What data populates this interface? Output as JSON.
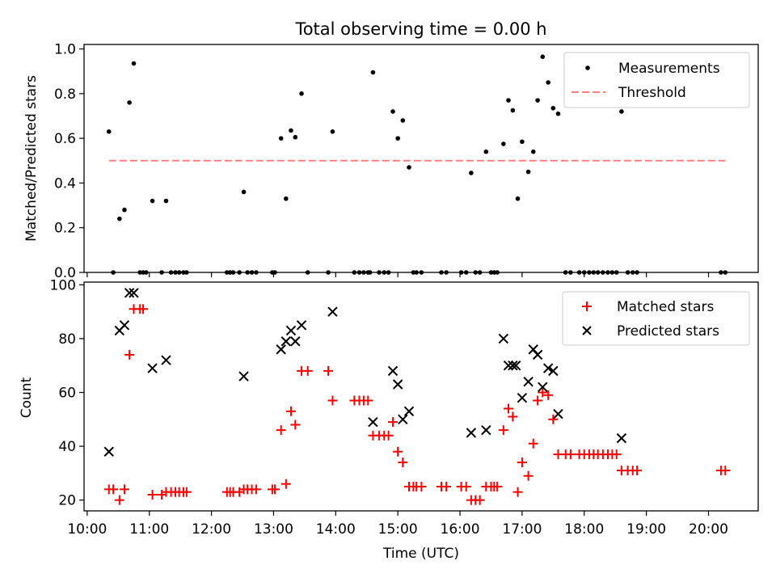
{
  "title": "Total observing time = 0.00 h",
  "chart_data": [
    {
      "type": "scatter",
      "ylabel": "Matched/Predicted stars",
      "xlim": [
        9.95,
        20.8
      ],
      "ylim": [
        0,
        1.02
      ],
      "yticks": [
        0.0,
        0.2,
        0.4,
        0.6,
        0.8,
        1.0
      ],
      "ytick_labels": [
        "0.0",
        "0.2",
        "0.4",
        "0.6",
        "0.8",
        "1.0"
      ],
      "legend_position": "upper right",
      "series": [
        {
          "name": "Measurements",
          "marker": "dot",
          "color": "#000000",
          "points": [
            [
              10.35,
              0.63
            ],
            [
              10.42,
              0.0
            ],
            [
              10.52,
              0.24
            ],
            [
              10.6,
              0.28
            ],
            [
              10.68,
              0.76
            ],
            [
              10.75,
              0.935
            ],
            [
              10.85,
              0.0
            ],
            [
              10.9,
              0.0
            ],
            [
              10.95,
              0.0
            ],
            [
              11.05,
              0.32
            ],
            [
              11.2,
              0.0
            ],
            [
              11.27,
              0.32
            ],
            [
              11.35,
              0.0
            ],
            [
              11.42,
              0.0
            ],
            [
              11.48,
              0.0
            ],
            [
              11.55,
              0.0
            ],
            [
              11.6,
              0.0
            ],
            [
              12.25,
              0.0
            ],
            [
              12.3,
              0.0
            ],
            [
              12.35,
              0.0
            ],
            [
              12.45,
              0.0
            ],
            [
              12.52,
              0.36
            ],
            [
              12.58,
              0.0
            ],
            [
              12.65,
              0.0
            ],
            [
              12.72,
              0.0
            ],
            [
              12.98,
              0.0
            ],
            [
              13.02,
              0.0
            ],
            [
              13.12,
              0.6
            ],
            [
              13.2,
              0.33
            ],
            [
              13.28,
              0.635
            ],
            [
              13.35,
              0.605
            ],
            [
              13.45,
              0.8
            ],
            [
              13.55,
              0.0
            ],
            [
              13.88,
              0.0
            ],
            [
              13.95,
              0.63
            ],
            [
              14.3,
              0.0
            ],
            [
              14.38,
              0.0
            ],
            [
              14.45,
              0.0
            ],
            [
              14.52,
              0.0
            ],
            [
              14.55,
              0.0
            ],
            [
              14.6,
              0.895
            ],
            [
              14.7,
              0.0
            ],
            [
              14.78,
              0.0
            ],
            [
              14.85,
              0.0
            ],
            [
              14.92,
              0.72
            ],
            [
              15.0,
              0.6
            ],
            [
              15.08,
              0.68
            ],
            [
              15.18,
              0.47
            ],
            [
              15.25,
              0.0
            ],
            [
              15.3,
              0.0
            ],
            [
              15.38,
              0.0
            ],
            [
              15.7,
              0.0
            ],
            [
              15.78,
              0.0
            ],
            [
              16.02,
              0.0
            ],
            [
              16.1,
              0.0
            ],
            [
              16.18,
              0.445
            ],
            [
              16.25,
              0.0
            ],
            [
              16.32,
              0.0
            ],
            [
              16.42,
              0.54
            ],
            [
              16.5,
              0.0
            ],
            [
              16.55,
              0.0
            ],
            [
              16.6,
              0.0
            ],
            [
              16.7,
              0.575
            ],
            [
              16.78,
              0.77
            ],
            [
              16.85,
              0.725
            ],
            [
              16.93,
              0.33
            ],
            [
              17.0,
              0.585
            ],
            [
              17.1,
              0.45
            ],
            [
              17.18,
              0.54
            ],
            [
              17.25,
              0.77
            ],
            [
              17.33,
              0.965
            ],
            [
              17.42,
              0.85
            ],
            [
              17.5,
              0.735
            ],
            [
              17.58,
              0.71
            ],
            [
              17.7,
              0.0
            ],
            [
              17.78,
              0.0
            ],
            [
              17.92,
              0.0
            ],
            [
              18.0,
              0.0
            ],
            [
              18.08,
              0.0
            ],
            [
              18.15,
              0.0
            ],
            [
              18.22,
              0.0
            ],
            [
              18.3,
              0.0
            ],
            [
              18.38,
              0.0
            ],
            [
              18.45,
              0.0
            ],
            [
              18.52,
              0.0
            ],
            [
              18.6,
              0.72
            ],
            [
              18.7,
              0.0
            ],
            [
              18.78,
              0.0
            ],
            [
              18.85,
              0.0
            ],
            [
              20.2,
              0.0
            ],
            [
              20.27,
              0.0
            ]
          ]
        },
        {
          "name": "Threshold",
          "marker": "dashed-line",
          "color": "#ff7f7f",
          "points": [
            [
              10.35,
              0.5
            ],
            [
              20.27,
              0.5
            ]
          ]
        }
      ]
    },
    {
      "type": "scatter",
      "xlabel": "Time (UTC)",
      "ylabel": "Count",
      "xlim": [
        9.95,
        20.8
      ],
      "ylim": [
        16,
        101
      ],
      "yticks": [
        20,
        40,
        60,
        80,
        100
      ],
      "ytick_labels": [
        "20",
        "40",
        "60",
        "80",
        "100"
      ],
      "xticks": [
        10,
        11,
        12,
        13,
        14,
        15,
        16,
        17,
        18,
        19,
        20
      ],
      "xtick_labels": [
        "10:00",
        "11:00",
        "12:00",
        "13:00",
        "14:00",
        "15:00",
        "16:00",
        "17:00",
        "18:00",
        "19:00",
        "20:00"
      ],
      "legend_position": "upper right",
      "series": [
        {
          "name": "Matched stars",
          "marker": "plus",
          "color": "#ff0000",
          "points": [
            [
              10.35,
              24
            ],
            [
              10.42,
              24
            ],
            [
              10.52,
              20
            ],
            [
              10.6,
              24
            ],
            [
              10.68,
              74
            ],
            [
              10.75,
              91
            ],
            [
              10.85,
              91
            ],
            [
              10.9,
              91
            ],
            [
              11.05,
              22
            ],
            [
              11.2,
              22
            ],
            [
              11.27,
              23
            ],
            [
              11.35,
              23
            ],
            [
              11.42,
              23
            ],
            [
              11.48,
              23
            ],
            [
              11.55,
              23
            ],
            [
              11.6,
              23
            ],
            [
              12.25,
              23
            ],
            [
              12.3,
              23
            ],
            [
              12.35,
              23
            ],
            [
              12.45,
              23
            ],
            [
              12.52,
              24
            ],
            [
              12.58,
              24
            ],
            [
              12.65,
              24
            ],
            [
              12.72,
              24
            ],
            [
              12.98,
              24
            ],
            [
              13.02,
              24
            ],
            [
              13.12,
              46
            ],
            [
              13.2,
              26
            ],
            [
              13.28,
              53
            ],
            [
              13.35,
              48
            ],
            [
              13.45,
              68
            ],
            [
              13.55,
              68
            ],
            [
              13.88,
              68
            ],
            [
              13.95,
              57
            ],
            [
              14.3,
              57
            ],
            [
              14.38,
              57
            ],
            [
              14.45,
              57
            ],
            [
              14.52,
              57
            ],
            [
              14.6,
              44
            ],
            [
              14.7,
              44
            ],
            [
              14.78,
              44
            ],
            [
              14.85,
              44
            ],
            [
              14.92,
              49
            ],
            [
              15.0,
              38
            ],
            [
              15.08,
              34
            ],
            [
              15.18,
              25
            ],
            [
              15.25,
              25
            ],
            [
              15.3,
              25
            ],
            [
              15.38,
              25
            ],
            [
              15.7,
              25
            ],
            [
              15.78,
              25
            ],
            [
              16.02,
              25
            ],
            [
              16.1,
              25
            ],
            [
              16.18,
              20
            ],
            [
              16.25,
              20
            ],
            [
              16.32,
              20
            ],
            [
              16.42,
              25
            ],
            [
              16.5,
              25
            ],
            [
              16.55,
              25
            ],
            [
              16.6,
              25
            ],
            [
              16.7,
              46
            ],
            [
              16.78,
              54
            ],
            [
              16.85,
              51
            ],
            [
              16.93,
              23
            ],
            [
              17.0,
              34
            ],
            [
              17.1,
              29
            ],
            [
              17.18,
              41
            ],
            [
              17.25,
              57
            ],
            [
              17.33,
              60
            ],
            [
              17.42,
              59
            ],
            [
              17.5,
              50
            ],
            [
              17.58,
              37
            ],
            [
              17.7,
              37
            ],
            [
              17.78,
              37
            ],
            [
              17.92,
              37
            ],
            [
              18.0,
              37
            ],
            [
              18.08,
              37
            ],
            [
              18.15,
              37
            ],
            [
              18.22,
              37
            ],
            [
              18.3,
              37
            ],
            [
              18.38,
              37
            ],
            [
              18.45,
              37
            ],
            [
              18.52,
              37
            ],
            [
              18.6,
              31
            ],
            [
              18.7,
              31
            ],
            [
              18.78,
              31
            ],
            [
              18.85,
              31
            ],
            [
              20.2,
              31
            ],
            [
              20.27,
              31
            ]
          ]
        },
        {
          "name": "Predicted stars",
          "marker": "x",
          "color": "#000000",
          "points": [
            [
              10.35,
              38
            ],
            [
              10.52,
              83
            ],
            [
              10.6,
              85
            ],
            [
              10.68,
              97
            ],
            [
              10.75,
              97
            ],
            [
              11.05,
              69
            ],
            [
              11.27,
              72
            ],
            [
              12.52,
              66
            ],
            [
              13.12,
              76
            ],
            [
              13.2,
              79
            ],
            [
              13.28,
              83
            ],
            [
              13.35,
              79
            ],
            [
              13.45,
              85
            ],
            [
              13.95,
              90
            ],
            [
              14.6,
              49
            ],
            [
              14.92,
              68
            ],
            [
              15.0,
              63
            ],
            [
              15.08,
              50
            ],
            [
              15.18,
              53
            ],
            [
              16.18,
              45
            ],
            [
              16.42,
              46
            ],
            [
              16.7,
              80
            ],
            [
              16.78,
              70
            ],
            [
              16.85,
              70
            ],
            [
              16.9,
              70
            ],
            [
              17.0,
              58
            ],
            [
              17.1,
              64
            ],
            [
              17.18,
              76
            ],
            [
              17.25,
              74
            ],
            [
              17.33,
              62
            ],
            [
              17.42,
              69
            ],
            [
              17.5,
              68
            ],
            [
              17.58,
              52
            ],
            [
              18.6,
              43
            ]
          ]
        }
      ]
    }
  ]
}
